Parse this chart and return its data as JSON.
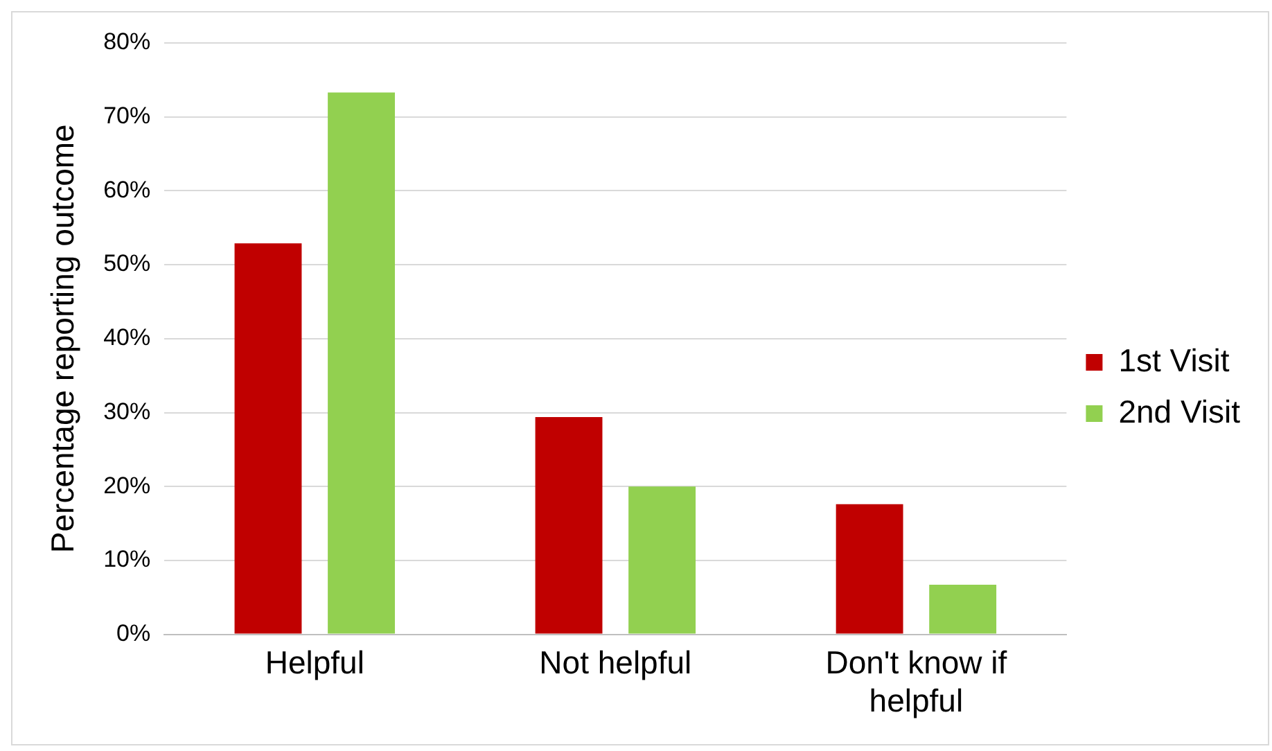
{
  "chart_data": {
    "type": "bar",
    "ylabel": "Percentage reporting outcome",
    "categories": [
      "Helpful",
      "Not helpful",
      "Don't know if helpful"
    ],
    "series": [
      {
        "name": "1st Visit",
        "color": "#c00000",
        "values": [
          52.9,
          29.4,
          17.6
        ]
      },
      {
        "name": "2nd Visit",
        "color": "#92d050",
        "values": [
          73.3,
          20,
          6.7
        ]
      }
    ],
    "ylim": [
      0,
      80
    ],
    "yticks": [
      {
        "value": 0,
        "label": "0%"
      },
      {
        "value": 10,
        "label": "10%"
      },
      {
        "value": 20,
        "label": "20%"
      },
      {
        "value": 30,
        "label": "30%"
      },
      {
        "value": 40,
        "label": "40%"
      },
      {
        "value": 50,
        "label": "50%"
      },
      {
        "value": 60,
        "label": "60%"
      },
      {
        "value": 70,
        "label": "70%"
      },
      {
        "value": 80,
        "label": "80%"
      }
    ],
    "grid": "y",
    "legend": "right"
  }
}
